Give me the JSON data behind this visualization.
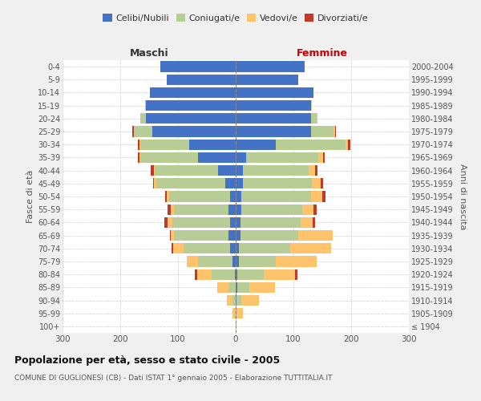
{
  "age_groups": [
    "100+",
    "95-99",
    "90-94",
    "85-89",
    "80-84",
    "75-79",
    "70-74",
    "65-69",
    "60-64",
    "55-59",
    "50-54",
    "45-49",
    "40-44",
    "35-39",
    "30-34",
    "25-29",
    "20-24",
    "15-19",
    "10-14",
    "5-9",
    "0-4"
  ],
  "birth_years": [
    "≤ 1904",
    "1905-1909",
    "1910-1914",
    "1915-1919",
    "1920-1924",
    "1925-1929",
    "1930-1934",
    "1935-1939",
    "1940-1944",
    "1945-1949",
    "1950-1954",
    "1955-1959",
    "1960-1964",
    "1965-1969",
    "1970-1974",
    "1975-1979",
    "1980-1984",
    "1985-1989",
    "1990-1994",
    "1995-1999",
    "2000-2004"
  ],
  "maschi": {
    "celibi": [
      0,
      0,
      0,
      0,
      2,
      5,
      10,
      12,
      10,
      12,
      10,
      18,
      30,
      65,
      80,
      145,
      155,
      155,
      148,
      120,
      130
    ],
    "coniugati": [
      0,
      2,
      5,
      12,
      40,
      60,
      80,
      95,
      100,
      95,
      105,
      120,
      110,
      100,
      85,
      30,
      10,
      2,
      0,
      0,
      0
    ],
    "vedovi": [
      0,
      3,
      10,
      20,
      25,
      20,
      18,
      5,
      8,
      5,
      5,
      3,
      2,
      2,
      2,
      2,
      0,
      0,
      0,
      0,
      0
    ],
    "divorziati": [
      0,
      0,
      0,
      0,
      4,
      0,
      3,
      2,
      5,
      6,
      2,
      2,
      5,
      3,
      2,
      2,
      0,
      0,
      0,
      0,
      0
    ]
  },
  "femmine": {
    "nubili": [
      0,
      0,
      2,
      3,
      3,
      5,
      5,
      8,
      8,
      10,
      10,
      12,
      12,
      18,
      70,
      130,
      130,
      130,
      135,
      108,
      120
    ],
    "coniugate": [
      0,
      2,
      8,
      20,
      45,
      65,
      90,
      100,
      105,
      105,
      120,
      120,
      115,
      125,
      120,
      40,
      10,
      2,
      0,
      0,
      0
    ],
    "vedove": [
      2,
      10,
      30,
      45,
      55,
      70,
      70,
      60,
      20,
      20,
      20,
      15,
      10,
      8,
      5,
      2,
      2,
      0,
      0,
      0,
      0
    ],
    "divorziate": [
      0,
      0,
      0,
      0,
      4,
      0,
      0,
      0,
      5,
      5,
      5,
      5,
      5,
      3,
      3,
      2,
      0,
      0,
      0,
      0,
      0
    ]
  },
  "color_celibi": "#4472c4",
  "color_coniugati": "#b8cc96",
  "color_vedovi": "#ffc36b",
  "color_divorziati": "#c0392b",
  "xlim": 300,
  "title": "Popolazione per età, sesso e stato civile - 2005",
  "subtitle": "COMUNE DI GUGLIONESI (CB) - Dati ISTAT 1° gennaio 2005 - Elaborazione TUTTITALIA.IT",
  "ylabel": "Fasce di età",
  "ylabel_right": "Anni di nascita",
  "label_maschi": "Maschi",
  "label_femmine": "Femmine",
  "bg_color": "#f0f0f0",
  "plot_bg_color": "#ffffff",
  "grid_color": "#cccccc"
}
